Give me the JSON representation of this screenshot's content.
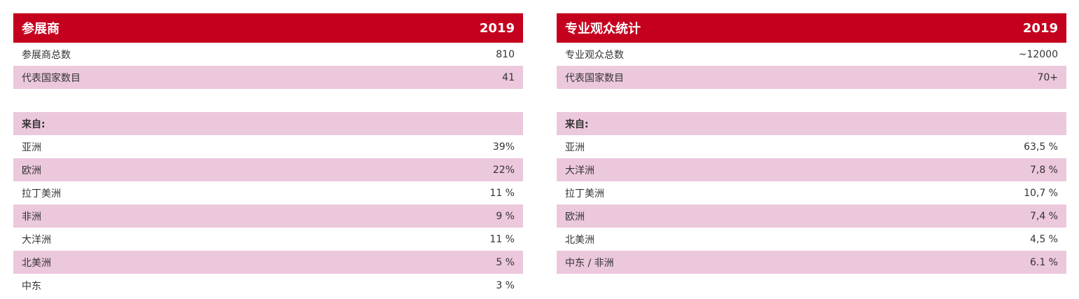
{
  "left": {
    "header": {
      "title": "参展商",
      "year": "2019"
    },
    "summary": [
      {
        "label": "参展商总数",
        "value": "810"
      },
      {
        "label": "代表国家数目",
        "value": "41"
      }
    ],
    "from_label": "来自:",
    "regions": [
      {
        "label": "亚洲",
        "value": "39%"
      },
      {
        "label": "欧洲",
        "value": "22%"
      },
      {
        "label": "拉丁美洲",
        "value": "11 %"
      },
      {
        "label": "非洲",
        "value": "9 %"
      },
      {
        "label": "大洋洲",
        "value": "11 %"
      },
      {
        "label": "北美洲",
        "value": "5 %"
      },
      {
        "label": "中东",
        "value": "3 %"
      }
    ]
  },
  "right": {
    "header": {
      "title": "专业观众统计",
      "year": "2019"
    },
    "summary": [
      {
        "label": "专业观众总数",
        "value": "~12000"
      },
      {
        "label": "代表国家数目",
        "value": "70+"
      }
    ],
    "from_label": "来自:",
    "regions": [
      {
        "label": "亚洲",
        "value": "63,5 %"
      },
      {
        "label": "大洋洲",
        "value": "7,8 %"
      },
      {
        "label": "拉丁美洲",
        "value": "10,7 %"
      },
      {
        "label": "欧洲",
        "value": "7,4 %"
      },
      {
        "label": "北美洲",
        "value": "4,5 %"
      },
      {
        "label": "中东 / 非洲",
        "value": "6.1 %"
      }
    ]
  },
  "colors": {
    "header_bg": "#c5001e",
    "stripe_bg": "#ecc8dd",
    "text": "#333333"
  }
}
